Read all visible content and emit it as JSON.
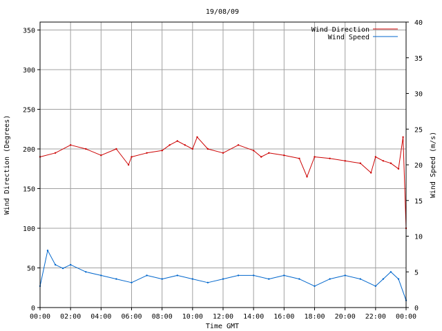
{
  "chart_data": {
    "type": "line",
    "title": "19/08/09",
    "xlabel": "Time GMT",
    "ylabel_left": "Wind Direction (Degrees)",
    "ylabel_right": "Wind Speed (m/s)",
    "x_ticks": [
      "00:00",
      "02:00",
      "04:00",
      "06:00",
      "08:00",
      "10:00",
      "12:00",
      "14:00",
      "16:00",
      "18:00",
      "20:00",
      "22:00",
      "00:00"
    ],
    "x_range_hours": [
      0,
      24
    ],
    "ylim_left": [
      0,
      360
    ],
    "yticks_left": [
      0,
      50,
      100,
      150,
      200,
      250,
      300,
      350
    ],
    "ylim_right": [
      0,
      40
    ],
    "yticks_right": [
      0,
      5,
      10,
      15,
      20,
      25,
      30,
      35,
      40
    ],
    "grid": true,
    "legend_position": "top-right",
    "series": [
      {
        "name": "Wind Direction",
        "axis": "left",
        "color": "#cc0000",
        "x_hours": [
          0,
          1,
          2,
          3,
          4,
          5,
          5.8,
          6,
          7,
          8,
          8.5,
          9,
          9.5,
          10,
          10.3,
          11,
          12,
          13,
          14,
          14.5,
          15,
          16,
          17,
          17.5,
          18,
          19,
          20,
          21,
          21.7,
          22,
          22.5,
          23,
          23.5,
          23.8,
          24
        ],
        "values": [
          190,
          195,
          205,
          200,
          192,
          200,
          180,
          190,
          195,
          198,
          205,
          210,
          205,
          200,
          215,
          200,
          195,
          205,
          198,
          190,
          195,
          192,
          188,
          165,
          190,
          188,
          185,
          182,
          170,
          190,
          185,
          182,
          175,
          215,
          100
        ]
      },
      {
        "name": "Wind Speed",
        "axis": "right",
        "color": "#0066cc",
        "x_hours": [
          0,
          0.5,
          1,
          1.5,
          2,
          3,
          4,
          5,
          6,
          7,
          8,
          9,
          10,
          11,
          12,
          13,
          14,
          15,
          16,
          17,
          18,
          19,
          20,
          21,
          22,
          22.5,
          23,
          23.5,
          24
        ],
        "values": [
          3,
          8,
          6,
          5.5,
          6,
          5,
          4.5,
          4,
          3.5,
          4.5,
          4,
          4.5,
          4,
          3.5,
          4,
          4.5,
          4.5,
          4,
          4.5,
          4,
          3,
          4,
          4.5,
          4,
          3,
          4,
          5,
          4,
          1
        ]
      }
    ]
  }
}
